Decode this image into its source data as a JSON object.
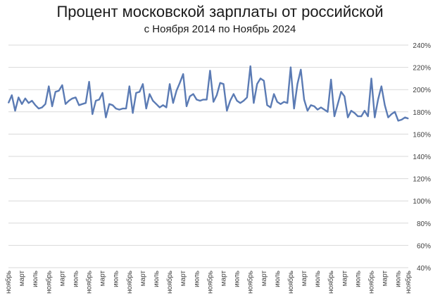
{
  "chart_data": {
    "type": "line",
    "title": "Процент московской зарплаты от российской",
    "subtitle": "с Ноября 2014 по Ноябрь 2024",
    "xlabel": "",
    "ylabel": "",
    "ylim": [
      40,
      240
    ],
    "y_ticks": [
      "40%",
      "60%",
      "80%",
      "100%",
      "120%",
      "140%",
      "160%",
      "180%",
      "200%",
      "220%",
      "240%"
    ],
    "grid": true,
    "legend": "none",
    "color": "#5b7bb4",
    "x_tick_labels": [
      "ноябрь",
      "март",
      "июль",
      "ноябрь",
      "март",
      "июль",
      "ноябрь",
      "март",
      "июль",
      "ноябрь",
      "март",
      "июль",
      "ноябрь",
      "март",
      "июль",
      "ноябрь",
      "март",
      "июль",
      "ноябрь",
      "март",
      "июль",
      "ноябрь",
      "март",
      "июль",
      "ноябрь",
      "март",
      "июль",
      "ноябрь",
      "март",
      "июль",
      "ноябрь"
    ],
    "series": [
      {
        "values": [
          188,
          195,
          181,
          193,
          187,
          192,
          188,
          190,
          186,
          183,
          184,
          187,
          203,
          185,
          198,
          199,
          204,
          187,
          190,
          192,
          193,
          186,
          187,
          188,
          207,
          178,
          190,
          191,
          197,
          175,
          187,
          186,
          183,
          182,
          183,
          183,
          203,
          179,
          197,
          198,
          205,
          183,
          196,
          190,
          187,
          184,
          186,
          184,
          205,
          188,
          199,
          206,
          214,
          185,
          194,
          196,
          191,
          190,
          191,
          191,
          217,
          189,
          195,
          206,
          205,
          181,
          190,
          196,
          190,
          188,
          190,
          193,
          221,
          188,
          205,
          210,
          208,
          186,
          184,
          196,
          189,
          187,
          189,
          188,
          220,
          183,
          205,
          218,
          191,
          181,
          186,
          185,
          182,
          184,
          182,
          180,
          209,
          176,
          187,
          198,
          194,
          175,
          181,
          179,
          176,
          176,
          181,
          176,
          210,
          175,
          191,
          203,
          186,
          175,
          178,
          180,
          172,
          173,
          175,
          174
        ]
      }
    ]
  }
}
